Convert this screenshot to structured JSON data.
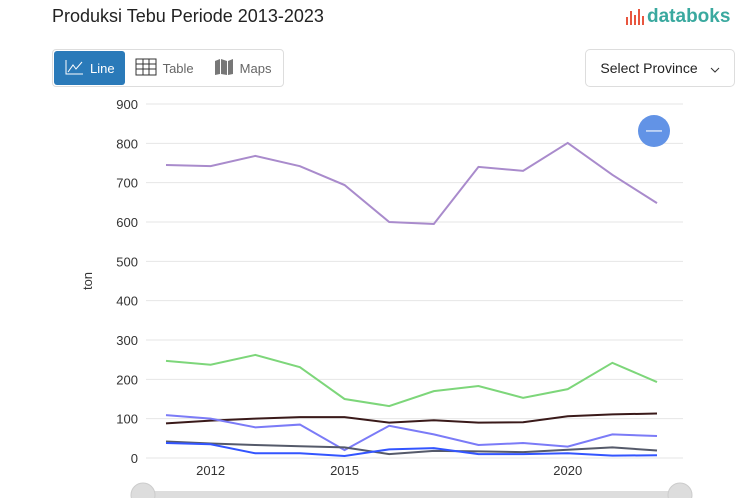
{
  "header": {
    "title": "Produksi Tebu Periode 2013-2023",
    "logo": "databoks"
  },
  "tabs": [
    {
      "label": "Line",
      "icon": "line-chart-icon",
      "active": true
    },
    {
      "label": "Table",
      "icon": "table-icon"
    },
    {
      "label": "Maps",
      "icon": "map-icon"
    }
  ],
  "province_select": {
    "label": "Select Province"
  },
  "colors": {
    "accent": "#2a7ab9",
    "logo": "#3aa99f"
  },
  "chart_data": {
    "type": "line",
    "title": "",
    "ylabel": "ton",
    "xlabel": "",
    "ylim": [
      0,
      900
    ],
    "yticks": [
      0,
      100,
      200,
      300,
      400,
      500,
      600,
      700,
      800,
      900
    ],
    "x": [
      2011,
      2012,
      2013,
      2014,
      2015,
      2016,
      2017,
      2018,
      2019,
      2020,
      2021,
      2022
    ],
    "xticks": [
      2012,
      2015,
      2020
    ],
    "grid": true,
    "series": [
      {
        "color": "#a98bcc",
        "values": [
          745,
          742,
          768,
          742,
          694,
          600,
          595,
          740,
          730,
          801,
          720,
          648
        ]
      },
      {
        "color": "#7dd67a",
        "values": [
          247,
          237,
          262,
          231,
          150,
          132,
          170,
          183,
          153,
          175,
          242,
          193
        ]
      },
      {
        "color": "#3a1a1a",
        "values": [
          88,
          95,
          100,
          104,
          104,
          90,
          96,
          90,
          91,
          106,
          111,
          113
        ]
      },
      {
        "color": "#7b7bf7",
        "values": [
          109,
          100,
          78,
          85,
          20,
          82,
          60,
          33,
          38,
          29,
          60,
          56
        ]
      },
      {
        "color": "#555a6a",
        "values": [
          42,
          37,
          33,
          30,
          27,
          10,
          18,
          17,
          15,
          21,
          27,
          19
        ]
      },
      {
        "color": "#3355ff",
        "values": [
          38,
          35,
          12,
          12,
          5,
          22,
          25,
          10,
          10,
          12,
          6,
          7
        ]
      }
    ]
  }
}
